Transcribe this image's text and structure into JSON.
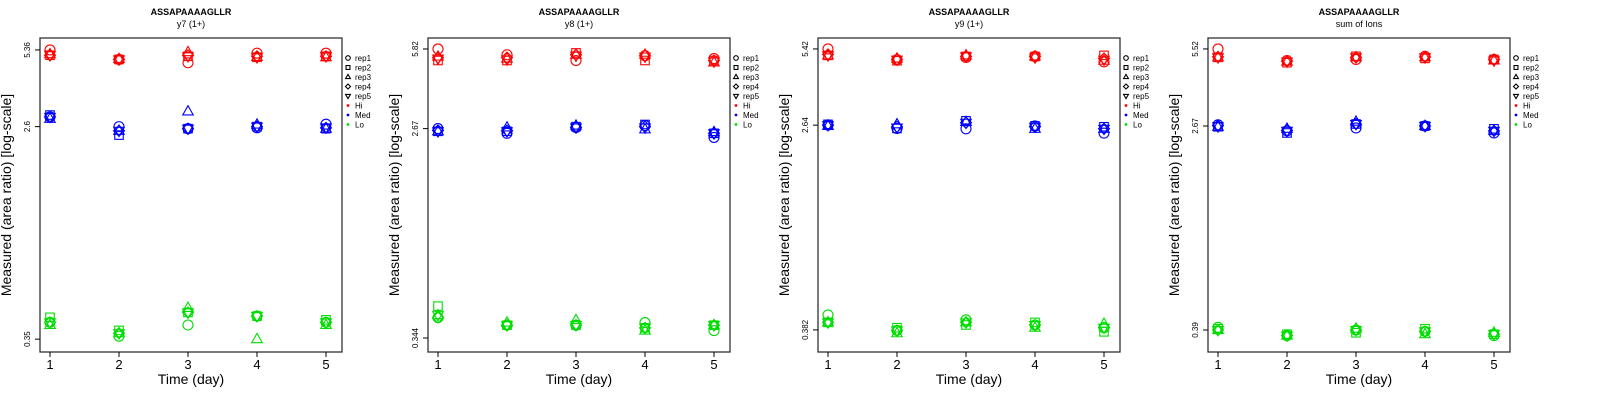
{
  "chart_data": [
    {
      "type": "scatter",
      "title": "ASSAPAAAAGLLR",
      "subtitle": "y7 (1+)",
      "xlabel": "Time (day)",
      "ylabel": "Measured (area ratio) [log-scale]",
      "x_ticks": [
        "1",
        "2",
        "3",
        "4",
        "5"
      ],
      "y_ticks": [
        5.36,
        2.6,
        0.35
      ],
      "y_tick_labels": [
        "5.36",
        "2.6",
        "0.35"
      ],
      "ylim": [
        0.31,
        6.0
      ],
      "y_scale": "log",
      "legend_position": "right",
      "series": {
        "Hi": [
          [
            5.36,
            5.1,
            5.15,
            5.1,
            5.1
          ],
          [
            4.9,
            4.9,
            4.92,
            4.9,
            4.9
          ],
          [
            4.75,
            5.05,
            5.25,
            5.1,
            5.05
          ],
          [
            5.2,
            5.0,
            5.02,
            5.05,
            5.0
          ],
          [
            5.2,
            5.05,
            5.0,
            5.05,
            5.05
          ]
        ],
        "Med": [
          [
            2.85,
            2.9,
            2.8,
            2.85,
            2.85
          ],
          [
            2.6,
            2.4,
            2.5,
            2.5,
            2.5
          ],
          [
            2.55,
            2.55,
            3.0,
            2.55,
            2.55
          ],
          [
            2.57,
            2.6,
            2.65,
            2.6,
            2.6
          ],
          [
            2.66,
            2.55,
            2.55,
            2.57,
            2.58
          ]
        ],
        "Lo": [
          [
            0.41,
            0.43,
            0.4,
            0.41,
            0.41
          ],
          [
            0.36,
            0.38,
            0.37,
            0.37,
            0.37
          ],
          [
            0.4,
            0.45,
            0.47,
            0.45,
            0.45
          ],
          [
            0.435,
            0.435,
            0.35,
            0.435,
            0.435
          ],
          [
            0.41,
            0.42,
            0.4,
            0.41,
            0.41
          ]
        ]
      }
    },
    {
      "type": "scatter",
      "title": "ASSAPAAAAGLLR",
      "subtitle": "y8 (1+)",
      "xlabel": "Time (day)",
      "ylabel": "Measured (area ratio) [log-scale]",
      "x_ticks": [
        "1",
        "2",
        "3",
        "4",
        "5"
      ],
      "y_ticks": [
        5.82,
        2.67,
        0.344
      ],
      "y_tick_labels": [
        "5.82",
        "2.67",
        "0.344"
      ],
      "ylim": [
        0.3,
        6.48
      ],
      "y_scale": "log",
      "legend_position": "right",
      "series": {
        "Hi": [
          [
            5.82,
            5.2,
            5.4,
            5.35,
            5.3
          ],
          [
            5.5,
            5.2,
            5.3,
            5.35,
            5.25
          ],
          [
            5.2,
            5.6,
            5.5,
            5.5,
            5.45
          ],
          [
            5.45,
            5.2,
            5.5,
            5.45,
            5.4
          ],
          [
            5.3,
            5.2,
            5.1,
            5.2,
            5.15
          ]
        ],
        "Med": [
          [
            2.67,
            2.6,
            2.6,
            2.62,
            2.6
          ],
          [
            2.55,
            2.6,
            2.7,
            2.62,
            2.6
          ],
          [
            2.7,
            2.72,
            2.75,
            2.7,
            2.7
          ],
          [
            2.75,
            2.78,
            2.65,
            2.72,
            2.7
          ],
          [
            2.45,
            2.55,
            2.58,
            2.55,
            2.55
          ]
        ],
        "Lo": [
          [
            0.42,
            0.47,
            0.43,
            0.42,
            0.43
          ],
          [
            0.39,
            0.39,
            0.4,
            0.39,
            0.39
          ],
          [
            0.39,
            0.39,
            0.41,
            0.39,
            0.39
          ],
          [
            0.4,
            0.38,
            0.37,
            0.38,
            0.38
          ],
          [
            0.37,
            0.39,
            0.39,
            0.39,
            0.39
          ]
        ]
      }
    },
    {
      "type": "scatter",
      "title": "ASSAPAAAAGLLR",
      "subtitle": "y9 (1+)",
      "xlabel": "Time (day)",
      "ylabel": "Measured (area ratio) [log-scale]",
      "x_ticks": [
        "1",
        "2",
        "3",
        "4",
        "5"
      ],
      "y_ticks": [
        5.42,
        2.64,
        0.382
      ],
      "y_tick_labels": [
        "5.42",
        "2.64",
        "0.382"
      ],
      "ylim": [
        0.31,
        6.01
      ],
      "y_scale": "log",
      "legend_position": "right",
      "series": {
        "Hi": [
          [
            5.42,
            5.1,
            5.1,
            5.15,
            5.1
          ],
          [
            4.9,
            4.85,
            4.95,
            4.9,
            4.9
          ],
          [
            5.0,
            5.05,
            5.1,
            5.05,
            5.05
          ],
          [
            5.05,
            5.05,
            5.05,
            5.05,
            5.0
          ],
          [
            4.8,
            5.1,
            4.85,
            4.95,
            4.9
          ]
        ],
        "Med": [
          [
            2.64,
            2.66,
            2.62,
            2.64,
            2.64
          ],
          [
            2.56,
            2.56,
            2.66,
            2.6,
            2.58
          ],
          [
            2.55,
            2.75,
            2.72,
            2.7,
            2.7
          ],
          [
            2.62,
            2.62,
            2.55,
            2.6,
            2.6
          ],
          [
            2.45,
            2.6,
            2.55,
            2.55,
            2.55
          ]
        ],
        "Lo": [
          [
            0.44,
            0.41,
            0.41,
            0.41,
            0.41
          ],
          [
            0.38,
            0.39,
            0.37,
            0.38,
            0.38
          ],
          [
            0.42,
            0.4,
            0.41,
            0.41,
            0.41
          ],
          [
            0.4,
            0.41,
            0.39,
            0.4,
            0.4
          ],
          [
            0.39,
            0.375,
            0.405,
            0.39,
            0.39
          ]
        ]
      }
    },
    {
      "type": "scatter",
      "title": "ASSAPAAAAGLLR",
      "subtitle": "sum of Ions",
      "xlabel": "Time (day)",
      "ylabel": "Measured (area ratio) [log-scale]",
      "x_ticks": [
        "1",
        "2",
        "3",
        "4",
        "5"
      ],
      "y_ticks": [
        5.52,
        2.67,
        0.39
      ],
      "y_tick_labels": [
        "5.52",
        "2.67",
        "0.39"
      ],
      "ylim": [
        0.317,
        6.12
      ],
      "y_scale": "log",
      "legend_position": "right",
      "series": {
        "Hi": [
          [
            5.52,
            5.1,
            5.1,
            5.12,
            5.1
          ],
          [
            4.95,
            4.85,
            4.9,
            4.92,
            4.9
          ],
          [
            5.0,
            5.15,
            5.1,
            5.1,
            5.1
          ],
          [
            5.15,
            5.05,
            5.1,
            5.12,
            5.1
          ],
          [
            5.0,
            5.0,
            4.95,
            5.0,
            4.95
          ]
        ],
        "Med": [
          [
            2.7,
            2.65,
            2.65,
            2.68,
            2.66
          ],
          [
            2.55,
            2.5,
            2.6,
            2.56,
            2.55
          ],
          [
            2.62,
            2.72,
            2.78,
            2.72,
            2.72
          ],
          [
            2.67,
            2.67,
            2.67,
            2.67,
            2.67
          ],
          [
            2.5,
            2.6,
            2.55,
            2.55,
            2.55
          ]
        ],
        "Lo": [
          [
            0.4,
            0.395,
            0.39,
            0.39,
            0.39
          ],
          [
            0.37,
            0.375,
            0.37,
            0.37,
            0.37
          ],
          [
            0.39,
            0.38,
            0.395,
            0.39,
            0.39
          ],
          [
            0.385,
            0.395,
            0.375,
            0.385,
            0.385
          ],
          [
            0.37,
            0.375,
            0.38,
            0.375,
            0.375
          ]
        ]
      }
    }
  ],
  "legend": {
    "reps": [
      {
        "label": "rep1",
        "marker": "circle"
      },
      {
        "label": "rep2",
        "marker": "square"
      },
      {
        "label": "rep3",
        "marker": "triangle-up"
      },
      {
        "label": "rep4",
        "marker": "diamond"
      },
      {
        "label": "rep5",
        "marker": "triangle-down"
      }
    ],
    "levels": [
      {
        "label": "Hi",
        "color": "#ff0000"
      },
      {
        "label": "Med",
        "color": "#0000ff"
      },
      {
        "label": "Lo",
        "color": "#00dd00"
      }
    ]
  }
}
